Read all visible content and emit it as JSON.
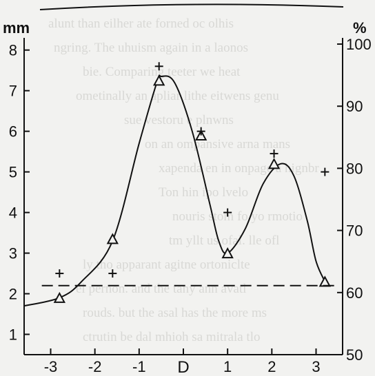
{
  "chart_data": {
    "type": "line",
    "title": "",
    "xlabel": "D",
    "ylabel_left": "mm",
    "ylabel_right": "%",
    "xlim": [
      -3.6,
      3.6
    ],
    "ylim_left": [
      0.5,
      8.3
    ],
    "ylim_right": [
      50,
      101
    ],
    "x_ticks": [
      -3,
      -2,
      -1,
      1,
      2,
      3
    ],
    "x_center_label": "D",
    "y_ticks_left": [
      1,
      2,
      3,
      4,
      5,
      6,
      7,
      8
    ],
    "y_ticks_right": [
      50,
      60,
      70,
      80,
      90,
      100
    ],
    "grid": false,
    "legend": "none",
    "series": [
      {
        "axis": "left",
        "style": "solid line with open triangle markers",
        "x": [
          -3.6,
          -2.8,
          -2.3,
          -1.6,
          -1.0,
          -0.6,
          -0.5,
          -0.2,
          0.2,
          0.6,
          0.8,
          1.0,
          1.4,
          1.8,
          2.2,
          2.5,
          2.8,
          3.0,
          3.2
        ],
        "y": [
          1.7,
          1.9,
          2.3,
          3.3,
          5.7,
          7.2,
          7.35,
          7.2,
          6.0,
          4.2,
          3.3,
          3.0,
          3.6,
          4.7,
          5.2,
          4.9,
          3.8,
          2.8,
          2.3
        ],
        "markers": {
          "x": [
            -2.8,
            -1.6,
            -0.55,
            0.4,
            1.0,
            2.05,
            3.2
          ],
          "y": [
            1.9,
            3.35,
            7.25,
            5.9,
            3.0,
            5.2,
            2.3
          ]
        }
      },
      {
        "axis": "left",
        "style": "plus markers",
        "x": [
          -2.8,
          -1.6,
          -0.55,
          0.4,
          1.0,
          2.05,
          3.2
        ],
        "y": [
          2.5,
          2.5,
          7.6,
          6.0,
          4.0,
          5.45,
          5.0
        ]
      },
      {
        "axis": "left",
        "style": "dashed horizontal line",
        "x": [
          -3.2,
          3.5
        ],
        "y": [
          2.2,
          2.2
        ]
      }
    ]
  }
}
